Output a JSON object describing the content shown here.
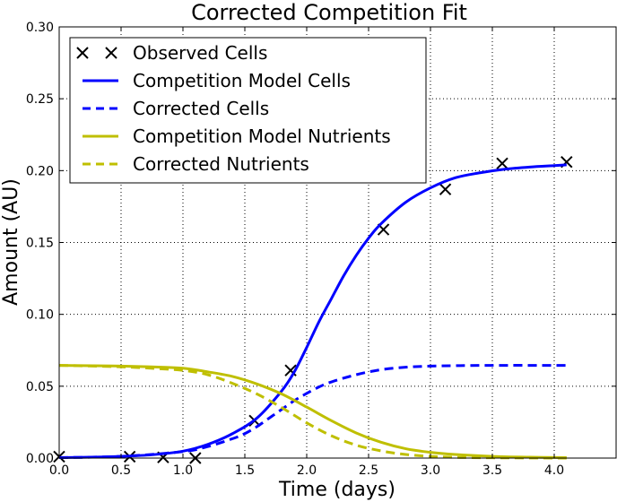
{
  "chart_data": {
    "type": "line",
    "title": "Corrected Competition Fit",
    "xlabel": "Time (days)",
    "ylabel": "Amount (AU)",
    "xlim": [
      0,
      4.5
    ],
    "ylim": [
      0,
      0.3
    ],
    "xticks": [
      "0.0",
      "0.5",
      "1.0",
      "1.5",
      "2.0",
      "2.5",
      "3.0",
      "3.5",
      "4.0"
    ],
    "yticks": [
      "0.00",
      "0.05",
      "0.10",
      "0.15",
      "0.20",
      "0.25",
      "0.30"
    ],
    "grid": true,
    "legend_position": "upper-left",
    "series": [
      {
        "name": "Observed Cells",
        "style": "markers-x",
        "color": "#000000",
        "x": [
          0.0,
          0.57,
          0.84,
          1.1,
          1.58,
          1.87,
          2.62,
          3.12,
          3.58,
          4.1
        ],
        "y": [
          0.001,
          0.001,
          0.0005,
          0.0,
          0.026,
          0.061,
          0.159,
          0.187,
          0.205,
          0.206
        ]
      },
      {
        "name": "Competition Model Cells",
        "style": "solid",
        "color": "#0000ff",
        "x": [
          0.0,
          0.25,
          0.5,
          0.75,
          1.0,
          1.2,
          1.4,
          1.6,
          1.8,
          1.9,
          2.0,
          2.1,
          2.2,
          2.3,
          2.4,
          2.5,
          2.6,
          2.8,
          3.0,
          3.2,
          3.4,
          3.6,
          3.8,
          4.0,
          4.1
        ],
        "y": [
          0.0003,
          0.0006,
          0.0012,
          0.0023,
          0.0048,
          0.0095,
          0.017,
          0.028,
          0.047,
          0.06,
          0.077,
          0.095,
          0.111,
          0.127,
          0.141,
          0.153,
          0.163,
          0.178,
          0.188,
          0.195,
          0.1985,
          0.201,
          0.2025,
          0.2035,
          0.204
        ]
      },
      {
        "name": "Corrected Cells",
        "style": "dashed",
        "color": "#0000ff",
        "x": [
          0.0,
          0.5,
          1.0,
          1.2,
          1.4,
          1.5,
          1.6,
          1.7,
          1.8,
          1.9,
          2.0,
          2.1,
          2.2,
          2.4,
          2.6,
          2.8,
          3.0,
          3.2,
          3.5,
          4.1
        ],
        "y": [
          0.0003,
          0.0012,
          0.0045,
          0.008,
          0.0135,
          0.017,
          0.022,
          0.028,
          0.034,
          0.04,
          0.045,
          0.0495,
          0.053,
          0.058,
          0.0615,
          0.0632,
          0.064,
          0.0643,
          0.0645,
          0.0645
        ]
      },
      {
        "name": "Competition Model Nutrients",
        "style": "solid",
        "color": "#bfbf00",
        "x": [
          0.0,
          0.5,
          0.8,
          1.0,
          1.2,
          1.4,
          1.6,
          1.8,
          2.0,
          2.2,
          2.4,
          2.6,
          2.8,
          3.0,
          3.2,
          3.5,
          3.8,
          4.1
        ],
        "y": [
          0.0645,
          0.064,
          0.0633,
          0.0625,
          0.06,
          0.0568,
          0.0515,
          0.0445,
          0.0355,
          0.026,
          0.0175,
          0.011,
          0.0065,
          0.004,
          0.0025,
          0.0012,
          0.0006,
          0.0003
        ]
      },
      {
        "name": "Corrected Nutrients",
        "style": "dashed",
        "color": "#bfbf00",
        "x": [
          0.0,
          0.5,
          0.8,
          1.0,
          1.2,
          1.4,
          1.6,
          1.8,
          2.0,
          2.2,
          2.4,
          2.6,
          2.8,
          3.0,
          3.2,
          3.5,
          4.1
        ],
        "y": [
          0.0645,
          0.0635,
          0.0622,
          0.061,
          0.058,
          0.052,
          0.0445,
          0.035,
          0.0245,
          0.0155,
          0.009,
          0.005,
          0.0025,
          0.0012,
          0.0005,
          0.0002,
          0.0
        ]
      }
    ]
  }
}
